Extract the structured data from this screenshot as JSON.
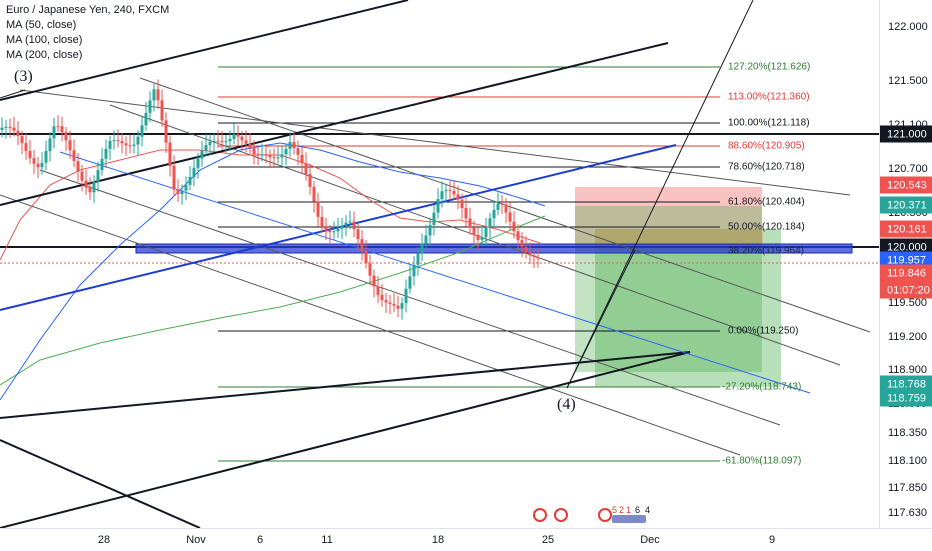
{
  "legend": {
    "symbol_line": "Euro / Japanese Yen, 240, FXCM",
    "ma1": "MA (50, close)",
    "ma2": "MA (100, close)",
    "ma3": "MA (200, close)"
  },
  "waves": {
    "w3": "(3)",
    "w4": "(4)"
  },
  "price_axis": {
    "ticks": [
      "122.000",
      "121.500",
      "121.100",
      "120.700",
      "120.300",
      "119.500",
      "119.200",
      "118.900",
      "118.600",
      "118.350",
      "118.100",
      "117.850",
      "117.630"
    ],
    "tags": [
      {
        "text": "121.000",
        "color": "#131722"
      },
      {
        "text": "120.543",
        "color": "#ef5350"
      },
      {
        "text": "120.371",
        "color": "#26a69a"
      },
      {
        "text": "120.161",
        "color": "#ef5350"
      },
      {
        "text": "120.000",
        "color": "#131722"
      },
      {
        "text": "119.957",
        "color": "#2962ff"
      },
      {
        "text": "119.846",
        "color": "#ef5350"
      },
      {
        "text": "01:07:20",
        "color": "#ef5350"
      },
      {
        "text": "118.768",
        "color": "#26a69a"
      },
      {
        "text": "118.759",
        "color": "#26a69a"
      }
    ]
  },
  "time_axis": {
    "labels": [
      "28",
      "Nov",
      "6",
      "11",
      "18",
      "25",
      "Dec",
      "9"
    ]
  },
  "fib_levels": [
    {
      "label": "127.20%(121.626)",
      "color": "#2e7d32"
    },
    {
      "label": "113.00%(121.360)",
      "color": "#e53935"
    },
    {
      "label": "100.00%(121.118)",
      "color": "#131722"
    },
    {
      "label": "88.60%(120.905)",
      "color": "#e53935"
    },
    {
      "label": "78.60%(120.718)",
      "color": "#131722"
    },
    {
      "label": "61.80%(120.404)",
      "color": "#131722"
    },
    {
      "label": "50.00%(120.184)",
      "color": "#131722"
    },
    {
      "label": "38.20%(119.964)",
      "color": "#131722"
    },
    {
      "label": "0.00%(119.250)",
      "color": "#131722"
    },
    {
      "label": "-27.20%(118.743)",
      "color": "#2e7d32"
    },
    {
      "label": "-61.80%(118.097)",
      "color": "#2e7d32"
    }
  ],
  "events": {
    "e1": "5",
    "e2": "2",
    "e3": "1",
    "e4": "6",
    "e5": "4"
  },
  "colors": {
    "up": "#26a69a",
    "down": "#ef5350",
    "ma50": "#ef5350",
    "ma100": "#2962ff",
    "ma200": "#4caf50",
    "trend_blue": "#1a3bd4",
    "profit_zone": "#4caf50",
    "loss_zone": "#ef5350"
  }
}
